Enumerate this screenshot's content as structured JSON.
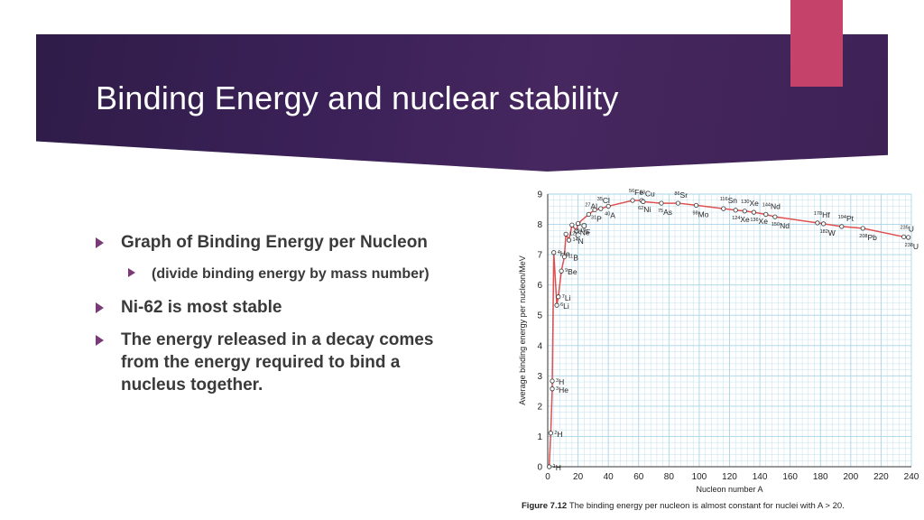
{
  "slide": {
    "title": "Binding Energy and nuclear stability",
    "bullets": [
      {
        "text": "Graph of Binding Energy per Nucleon"
      },
      {
        "text": "(divide binding energy by mass number)"
      },
      {
        "text": "Ni-62 is most stable"
      },
      {
        "text": "The energy released in a decay comes",
        "line2": "from the energy required to bind a",
        "line3": "nucleus together."
      }
    ]
  },
  "colors": {
    "banner": "#3b2158",
    "accent": "#c5426b",
    "curve": "#e05050",
    "grid": "#a9d4e6"
  },
  "chart_data": {
    "type": "line",
    "ylabel": "Average binding energy per nucleon/MeV",
    "xlabel": "Nucleon number A",
    "xlim": [
      0,
      240
    ],
    "ylim": [
      0,
      9
    ],
    "xticks": [
      0,
      20,
      40,
      60,
      80,
      100,
      120,
      140,
      160,
      180,
      200,
      220,
      240
    ],
    "yticks": [
      0,
      1,
      2,
      3,
      4,
      5,
      6,
      7,
      8,
      9
    ],
    "caption_bold": "Figure 7.12",
    "caption": "The binding energy per nucleon is almost constant for nuclei with A > 20.",
    "points": [
      {
        "A": 1,
        "y": 0,
        "label": "H",
        "sup": "1"
      },
      {
        "A": 2,
        "y": 1.11,
        "label": "H",
        "sup": "2"
      },
      {
        "A": 3,
        "y": 2.57,
        "label": "He",
        "sup": "3"
      },
      {
        "A": 3,
        "y": 2.83,
        "label": "H",
        "sup": "3"
      },
      {
        "A": 4,
        "y": 7.07,
        "label": "He",
        "sup": "4"
      },
      {
        "A": 6,
        "y": 5.33,
        "label": "Li",
        "sup": "6"
      },
      {
        "A": 7,
        "y": 5.61,
        "label": "Li",
        "sup": "7"
      },
      {
        "A": 9,
        "y": 6.46,
        "label": "Be",
        "sup": "9"
      },
      {
        "A": 11,
        "y": 6.93,
        "label": "B",
        "sup": "11"
      },
      {
        "A": 12,
        "y": 7.68,
        "label": "C",
        "sup": "12"
      },
      {
        "A": 14,
        "y": 7.48,
        "label": "N",
        "sup": "14"
      },
      {
        "A": 16,
        "y": 7.98,
        "label": "O",
        "sup": "16"
      },
      {
        "A": 19,
        "y": 7.78,
        "label": "F",
        "sup": "19"
      },
      {
        "A": 20,
        "y": 8.03,
        "label": "Ne",
        "sup": "20"
      },
      {
        "A": 27,
        "y": 8.33,
        "label": "Al",
        "sup": "27"
      },
      {
        "A": 31,
        "y": 8.48,
        "label": "P",
        "sup": "31"
      },
      {
        "A": 35,
        "y": 8.52,
        "label": "Cl",
        "sup": "35"
      },
      {
        "A": 40,
        "y": 8.6,
        "label": "A",
        "sup": "40"
      },
      {
        "A": 56,
        "y": 8.79,
        "label": "Fe",
        "sup": "56"
      },
      {
        "A": 62,
        "y": 8.79,
        "label": "Ni",
        "sup": "62"
      },
      {
        "A": 63,
        "y": 8.75,
        "label": "Cu",
        "sup": "63"
      },
      {
        "A": 75,
        "y": 8.7,
        "label": "As",
        "sup": "75"
      },
      {
        "A": 86,
        "y": 8.7,
        "label": "Sr",
        "sup": "86"
      },
      {
        "A": 98,
        "y": 8.63,
        "label": "Mo",
        "sup": "98"
      },
      {
        "A": 116,
        "y": 8.52,
        "label": "Sn",
        "sup": "116"
      },
      {
        "A": 124,
        "y": 8.47,
        "label": "Xe",
        "sup": "124"
      },
      {
        "A": 130,
        "y": 8.44,
        "label": "Xe",
        "sup": "130"
      },
      {
        "A": 136,
        "y": 8.4,
        "label": "Xe",
        "sup": "136"
      },
      {
        "A": 144,
        "y": 8.33,
        "label": "Nd",
        "sup": "144"
      },
      {
        "A": 150,
        "y": 8.25,
        "label": "Nd",
        "sup": "150"
      },
      {
        "A": 178,
        "y": 8.05,
        "label": "Hf",
        "sup": "178"
      },
      {
        "A": 182,
        "y": 8.02,
        "label": "W",
        "sup": "182"
      },
      {
        "A": 194,
        "y": 7.93,
        "label": "Pt",
        "sup": "194"
      },
      {
        "A": 208,
        "y": 7.87,
        "label": "Pb",
        "sup": "208"
      },
      {
        "A": 235,
        "y": 7.59,
        "label": "U",
        "sup": "235"
      },
      {
        "A": 238,
        "y": 7.57,
        "label": "U",
        "sup": "238"
      }
    ]
  }
}
